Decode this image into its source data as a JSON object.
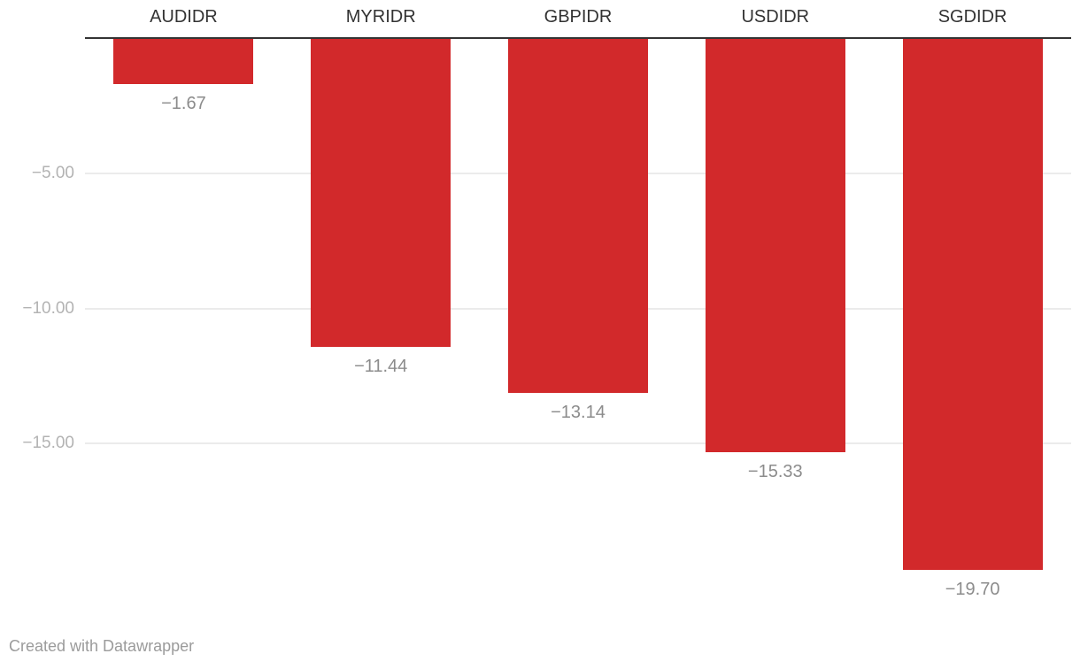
{
  "chart_data": {
    "type": "bar",
    "title": "",
    "xlabel": "",
    "ylabel": "",
    "categories": [
      "AUDIDR",
      "MYRIDR",
      "GBPIDR",
      "USDIDR",
      "SGDIDR"
    ],
    "values": [
      -1.67,
      -11.44,
      -13.14,
      -15.33,
      -19.7
    ],
    "value_labels": [
      "−1.67",
      "−11.44",
      "−13.14",
      "−15.33",
      "−19.70"
    ],
    "ylim": [
      -21,
      0
    ],
    "yticks": [
      -5,
      -10,
      -15
    ],
    "ytick_labels": [
      "−5.00",
      "−10.00",
      "−15.00"
    ],
    "grid": true,
    "legend": "none",
    "orientation": "vertical",
    "colors": {
      "bar": "#d2292b",
      "zero_axis": "#333333",
      "gridline": "#ebebeb",
      "category_label": "#333333",
      "value_label": "#8c8c8c",
      "tick_label": "#b3b3b3",
      "footer": "#9b9b9b",
      "background": "#ffffff"
    }
  },
  "footer": {
    "attribution": "Created with Datawrapper"
  }
}
